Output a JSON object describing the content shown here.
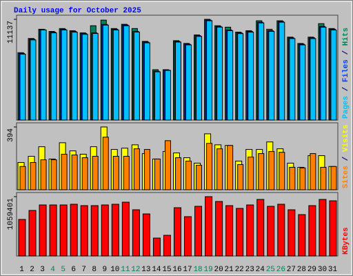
{
  "header": {
    "title": "Daily usage for October 2025"
  },
  "label_separator": " / ",
  "chart_data": [
    {
      "type": "bar",
      "ylim": [
        0,
        11137
      ],
      "yticks": [
        11137
      ],
      "series": [
        {
          "name": "Hits",
          "color": "#00805c",
          "values": [
            7450,
            9020,
            10040,
            9800,
            10120,
            9880,
            9640,
            10430,
            11050,
            10120,
            10590,
            10120,
            8700,
            5570,
            5570,
            8780,
            8470,
            9410,
            11137,
            10430,
            10270,
            9720,
            9880,
            10980,
            10040,
            10980,
            9170,
            8470,
            9170,
            10660,
            10120
          ]
        },
        {
          "name": "Files",
          "color": "#0040ff",
          "values": [
            7370,
            8940,
            10000,
            9720,
            10040,
            9800,
            9560,
            9650,
            10580,
            10040,
            10510,
            9810,
            8620,
            5410,
            5530,
            8700,
            8390,
            9330,
            11060,
            10350,
            9960,
            9640,
            9800,
            10820,
            9880,
            10900,
            9090,
            8390,
            9090,
            10350,
            10040
          ]
        },
        {
          "name": "Pages",
          "color": "#00c0ff",
          "values": [
            7290,
            8860,
            9960,
            9640,
            9960,
            9720,
            9480,
            9570,
            10500,
            9960,
            10430,
            9730,
            8540,
            5330,
            5490,
            8620,
            8310,
            9250,
            10980,
            10270,
            9880,
            9560,
            9720,
            10740,
            9800,
            10820,
            9010,
            8310,
            9010,
            10270,
            9960
          ]
        }
      ]
    },
    {
      "type": "bar",
      "ylim": [
        0,
        394
      ],
      "yticks": [
        394
      ],
      "series": [
        {
          "name": "Visits",
          "color": "#ffff00",
          "values": [
            171,
            210,
            270,
            193,
            295,
            244,
            223,
            270,
            394,
            253,
            261,
            282,
            227,
            193,
            240,
            231,
            201,
            167,
            351,
            282,
            278,
            180,
            253,
            253,
            300,
            257,
            167,
            141,
            214,
            214,
            146
          ]
        },
        {
          "name": "Sites",
          "color": "#ff8000",
          "values": [
            146,
            171,
            188,
            188,
            223,
            218,
            201,
            210,
            330,
            210,
            210,
            257,
            253,
            193,
            308,
            201,
            180,
            154,
            291,
            257,
            278,
            158,
            205,
            227,
            240,
            235,
            141,
            137,
            227,
            141,
            146
          ]
        }
      ]
    },
    {
      "type": "bar",
      "ylim": [
        0,
        1059401
      ],
      "yticks": [
        1059401
      ],
      "categories": [
        "1",
        "2",
        "3",
        "4",
        "5",
        "6",
        "7",
        "8",
        "9",
        "10",
        "11",
        "12",
        "13",
        "14",
        "15",
        "16",
        "17",
        "18",
        "19",
        "20",
        "21",
        "22",
        "23",
        "24",
        "25",
        "26",
        "27",
        "28",
        "29",
        "30",
        "31"
      ],
      "category_colors": [
        "#000000",
        "#000000",
        "#000000",
        "#00805c",
        "#00805c",
        "#000000",
        "#000000",
        "#000000",
        "#000000",
        "#000000",
        "#00805c",
        "#00805c",
        "#000000",
        "#000000",
        "#000000",
        "#000000",
        "#000000",
        "#00805c",
        "#00805c",
        "#000000",
        "#000000",
        "#000000",
        "#000000",
        "#000000",
        "#00805c",
        "#00805c",
        "#000000",
        "#000000",
        "#000000",
        "#000000",
        "#000000"
      ],
      "series": [
        {
          "name": "KBytes",
          "color": "#ff0000",
          "values": [
            652900,
            813100,
            911600,
            911600,
            911600,
            923900,
            899300,
            899300,
            911600,
            923900,
            960900,
            825400,
            751500,
            320300,
            369600,
            862300,
            702200,
            887000,
            1059401,
            973200,
            899300,
            850000,
            911600,
            1010200,
            887000,
            923900,
            825400,
            739100,
            899300,
            1010200,
            985500
          ]
        }
      ]
    }
  ]
}
